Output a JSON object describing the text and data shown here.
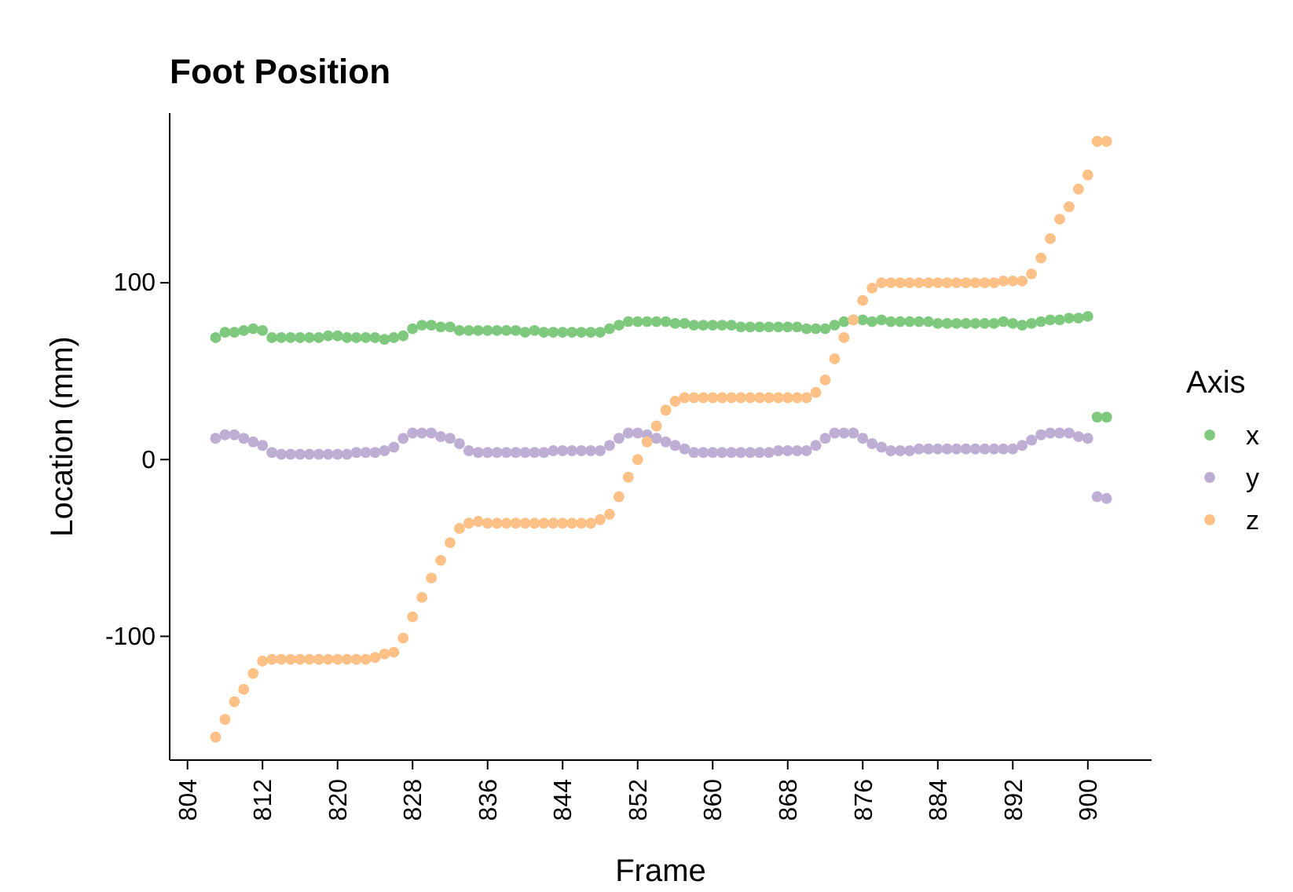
{
  "chart_data": {
    "type": "scatter",
    "title": "Foot Position",
    "xlabel": "Frame",
    "ylabel": "Location (mm)",
    "legend_title": "Axis",
    "legend": "right",
    "marker": "circle",
    "grid": false,
    "x": [
      807,
      808,
      809,
      810,
      811,
      812,
      813,
      814,
      815,
      816,
      817,
      818,
      819,
      820,
      821,
      822,
      823,
      824,
      825,
      826,
      827,
      828,
      829,
      830,
      831,
      832,
      833,
      834,
      835,
      836,
      837,
      838,
      839,
      840,
      841,
      842,
      843,
      844,
      845,
      846,
      847,
      848,
      849,
      850,
      851,
      852,
      853,
      854,
      855,
      856,
      857,
      858,
      859,
      860,
      861,
      862,
      863,
      864,
      865,
      866,
      867,
      868,
      869,
      870,
      871,
      872,
      873,
      874,
      875,
      876,
      877,
      878,
      879,
      880,
      881,
      882,
      883,
      884,
      885,
      886,
      887,
      888,
      889,
      890,
      891,
      892,
      893,
      894,
      895,
      896,
      897,
      898,
      899,
      900,
      901,
      902
    ],
    "xlim": [
      802.1,
      906.8
    ],
    "xticks": [
      804,
      812,
      820,
      828,
      836,
      844,
      852,
      860,
      868,
      876,
      884,
      892,
      900
    ],
    "ylim": [
      -170,
      196
    ],
    "yticks": [
      -100,
      0,
      100
    ],
    "series": [
      {
        "name": "x",
        "color": "#7fc97f",
        "values": [
          69,
          72,
          72,
          73,
          74,
          73,
          69,
          69,
          69,
          69,
          69,
          69,
          70,
          70,
          69,
          69,
          69,
          69,
          68,
          69,
          70,
          74,
          76,
          76,
          75,
          75,
          73,
          73,
          73,
          73,
          73,
          73,
          73,
          72,
          73,
          72,
          72,
          72,
          72,
          72,
          72,
          72,
          74,
          76,
          78,
          78,
          78,
          78,
          78,
          77,
          77,
          76,
          76,
          76,
          76,
          76,
          75,
          75,
          75,
          75,
          75,
          75,
          75,
          74,
          74,
          74,
          76,
          78,
          79,
          79,
          78,
          79,
          78,
          78,
          78,
          78,
          78,
          77,
          77,
          77,
          77,
          77,
          77,
          77,
          78,
          77,
          76,
          77,
          78,
          79,
          79,
          80,
          80,
          81,
          24,
          24
        ]
      },
      {
        "name": "y",
        "color": "#beaed4",
        "values": [
          12,
          14,
          14,
          12,
          10,
          8,
          4,
          3,
          3,
          3,
          3,
          3,
          3,
          3,
          3,
          4,
          4,
          4,
          5,
          7,
          12,
          15,
          15,
          15,
          13,
          12,
          9,
          5,
          4,
          4,
          4,
          4,
          4,
          4,
          4,
          4,
          5,
          5,
          5,
          5,
          5,
          5,
          8,
          12,
          15,
          15,
          14,
          12,
          10,
          8,
          6,
          4,
          4,
          4,
          4,
          4,
          4,
          4,
          4,
          4,
          5,
          5,
          5,
          5,
          8,
          12,
          15,
          15,
          15,
          12,
          9,
          7,
          5,
          5,
          5,
          6,
          6,
          6,
          6,
          6,
          6,
          6,
          6,
          6,
          6,
          6,
          8,
          11,
          14,
          15,
          15,
          15,
          13,
          12,
          -21,
          -22
        ]
      },
      {
        "name": "z",
        "color": "#fdc086",
        "values": [
          -157,
          -147,
          -137,
          -130,
          -121,
          -114,
          -113,
          -113,
          -113,
          -113,
          -113,
          -113,
          -113,
          -113,
          -113,
          -113,
          -113,
          -112,
          -110,
          -109,
          -101,
          -89,
          -78,
          -67,
          -57,
          -47,
          -39,
          -36,
          -35,
          -36,
          -36,
          -36,
          -36,
          -36,
          -36,
          -36,
          -36,
          -36,
          -36,
          -36,
          -36,
          -34,
          -31,
          -21,
          -10,
          0,
          10,
          19,
          28,
          33,
          35,
          35,
          35,
          35,
          35,
          35,
          35,
          35,
          35,
          35,
          35,
          35,
          35,
          35,
          38,
          45,
          57,
          69,
          79,
          90,
          97,
          100,
          100,
          100,
          100,
          100,
          100,
          100,
          100,
          100,
          100,
          100,
          100,
          100,
          101,
          101,
          101,
          105,
          114,
          125,
          136,
          143,
          153,
          161,
          180,
          180
        ]
      }
    ]
  }
}
